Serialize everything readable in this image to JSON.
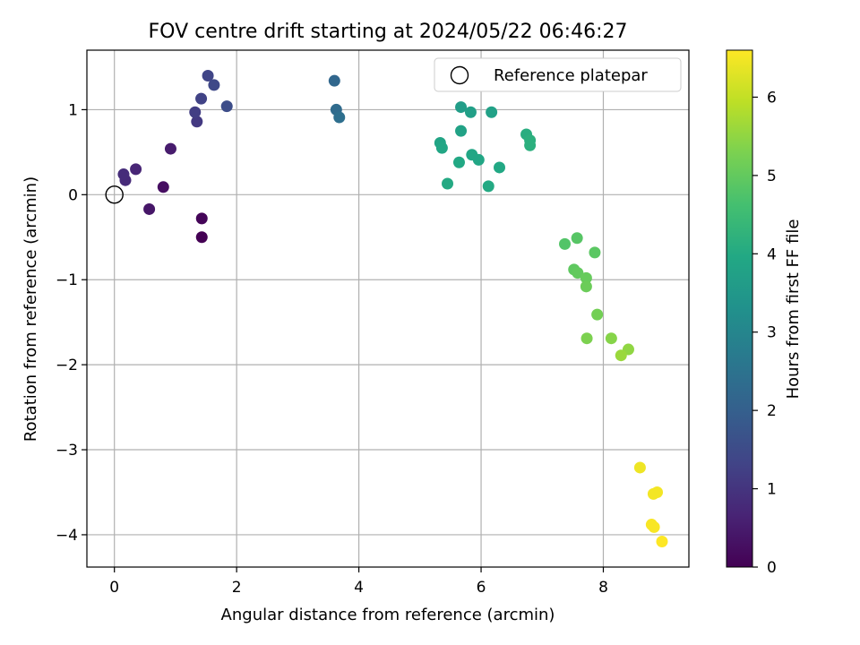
{
  "chart_data": {
    "type": "scatter",
    "title": "FOV centre drift starting at 2024/05/22 06:46:27",
    "xlabel": "Angular distance from reference (arcmin)",
    "ylabel": "Rotation from reference (arcmin)",
    "xlim": [
      -0.45,
      9.4
    ],
    "ylim": [
      -4.38,
      1.7
    ],
    "xticks": [
      0,
      2,
      4,
      6,
      8
    ],
    "xtick_labels": [
      "0",
      "2",
      "4",
      "6",
      "8"
    ],
    "yticks": [
      -4,
      -3,
      -2,
      -1,
      0,
      1
    ],
    "ytick_labels": [
      "−4",
      "−3",
      "−2",
      "−1",
      "0",
      "1"
    ],
    "grid": true,
    "legend": {
      "placement": "upper-right",
      "entries": [
        "Reference platepar"
      ]
    },
    "reference_point": {
      "name": "Reference platepar",
      "x": 0.0,
      "y": 0.0
    },
    "colorbar": {
      "label": "Hours from first FF file",
      "colormap": "viridis",
      "range": [
        0,
        6.6
      ],
      "ticks": [
        0,
        1,
        2,
        3,
        4,
        5,
        6
      ],
      "tick_labels": [
        "0",
        "1",
        "2",
        "3",
        "4",
        "5",
        "6"
      ]
    },
    "points": [
      {
        "x": 1.43,
        "y": -0.5,
        "c": 0.0
      },
      {
        "x": 1.43,
        "y": -0.28,
        "c": 0.08
      },
      {
        "x": 0.8,
        "y": 0.09,
        "c": 0.25
      },
      {
        "x": 0.57,
        "y": -0.17,
        "c": 0.4
      },
      {
        "x": 0.92,
        "y": 0.54,
        "c": 0.5
      },
      {
        "x": 0.35,
        "y": 0.3,
        "c": 0.7
      },
      {
        "x": 0.18,
        "y": 0.17,
        "c": 0.8
      },
      {
        "x": 0.15,
        "y": 0.24,
        "c": 0.85
      },
      {
        "x": 1.35,
        "y": 0.86,
        "c": 1.1
      },
      {
        "x": 1.32,
        "y": 0.97,
        "c": 1.2
      },
      {
        "x": 1.42,
        "y": 1.13,
        "c": 1.3
      },
      {
        "x": 1.53,
        "y": 1.4,
        "c": 1.35
      },
      {
        "x": 1.63,
        "y": 1.29,
        "c": 1.45
      },
      {
        "x": 1.84,
        "y": 1.04,
        "c": 1.55
      },
      {
        "x": 3.6,
        "y": 1.34,
        "c": 2.2
      },
      {
        "x": 3.63,
        "y": 1.0,
        "c": 2.3
      },
      {
        "x": 3.68,
        "y": 0.91,
        "c": 2.4
      },
      {
        "x": 5.67,
        "y": 1.03,
        "c": 3.65
      },
      {
        "x": 5.83,
        "y": 0.97,
        "c": 3.7
      },
      {
        "x": 6.17,
        "y": 0.97,
        "c": 3.75
      },
      {
        "x": 5.67,
        "y": 0.75,
        "c": 3.8
      },
      {
        "x": 5.33,
        "y": 0.61,
        "c": 3.85
      },
      {
        "x": 5.36,
        "y": 0.55,
        "c": 3.9
      },
      {
        "x": 5.85,
        "y": 0.47,
        "c": 3.9
      },
      {
        "x": 5.96,
        "y": 0.41,
        "c": 3.9
      },
      {
        "x": 5.64,
        "y": 0.38,
        "c": 3.95
      },
      {
        "x": 6.3,
        "y": 0.32,
        "c": 3.95
      },
      {
        "x": 5.45,
        "y": 0.13,
        "c": 4.0
      },
      {
        "x": 6.12,
        "y": 0.1,
        "c": 4.0
      },
      {
        "x": 6.74,
        "y": 0.71,
        "c": 4.1
      },
      {
        "x": 6.8,
        "y": 0.64,
        "c": 4.15
      },
      {
        "x": 6.8,
        "y": 0.58,
        "c": 4.15
      },
      {
        "x": 7.37,
        "y": -0.58,
        "c": 4.8
      },
      {
        "x": 7.57,
        "y": -0.51,
        "c": 4.85
      },
      {
        "x": 7.86,
        "y": -0.68,
        "c": 4.9
      },
      {
        "x": 7.52,
        "y": -0.88,
        "c": 4.95
      },
      {
        "x": 7.58,
        "y": -0.92,
        "c": 5.0
      },
      {
        "x": 7.72,
        "y": -0.98,
        "c": 5.05
      },
      {
        "x": 7.72,
        "y": -1.08,
        "c": 5.1
      },
      {
        "x": 7.9,
        "y": -1.41,
        "c": 5.2
      },
      {
        "x": 7.73,
        "y": -1.69,
        "c": 5.3
      },
      {
        "x": 8.13,
        "y": -1.69,
        "c": 5.4
      },
      {
        "x": 8.41,
        "y": -1.82,
        "c": 5.5
      },
      {
        "x": 8.29,
        "y": -1.89,
        "c": 5.6
      },
      {
        "x": 8.6,
        "y": -3.21,
        "c": 6.45
      },
      {
        "x": 8.88,
        "y": -3.5,
        "c": 6.5
      },
      {
        "x": 8.82,
        "y": -3.52,
        "c": 6.5
      },
      {
        "x": 8.79,
        "y": -3.88,
        "c": 6.55
      },
      {
        "x": 8.83,
        "y": -3.91,
        "c": 6.55
      },
      {
        "x": 8.96,
        "y": -4.08,
        "c": 6.6
      }
    ]
  }
}
